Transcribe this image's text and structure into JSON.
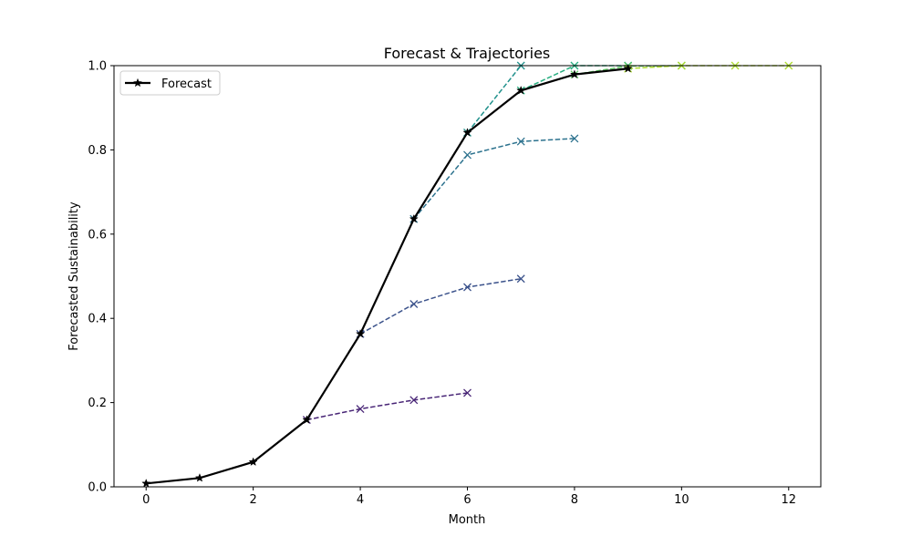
{
  "chart_data": {
    "type": "line",
    "title": "Forecast & Trajectories",
    "xlabel": "Month",
    "ylabel": "Forecasted Sustainability",
    "xlim": [
      -0.6,
      12.6
    ],
    "ylim": [
      0,
      1.0
    ],
    "xticks": [
      "0",
      "2",
      "4",
      "6",
      "8",
      "10",
      "12"
    ],
    "yticks": [
      "0.0",
      "0.2",
      "0.4",
      "0.6",
      "0.8",
      "1.0"
    ],
    "grid": false,
    "legend": {
      "position": "top-left",
      "entries": [
        "Forecast"
      ]
    },
    "forecast": {
      "name": "Forecast",
      "color": "#000000",
      "marker": "star",
      "x": [
        0,
        1,
        2,
        3,
        4,
        5,
        6,
        7,
        8,
        9
      ],
      "y": [
        0.008,
        0.021,
        0.059,
        0.159,
        0.363,
        0.636,
        0.841,
        0.941,
        0.979,
        0.993
      ]
    },
    "trajectories": [
      {
        "color": "#482576",
        "x": [
          3,
          4,
          5,
          6
        ],
        "y": [
          0.159,
          0.185,
          0.206,
          0.223
        ]
      },
      {
        "color": "#3b528b",
        "x": [
          4,
          5,
          6,
          7
        ],
        "y": [
          0.363,
          0.434,
          0.474,
          0.494
        ]
      },
      {
        "color": "#2c728e",
        "x": [
          5,
          6,
          7,
          8
        ],
        "y": [
          0.636,
          0.788,
          0.82,
          0.827
        ]
      },
      {
        "color": "#21918c",
        "x": [
          6,
          7
        ],
        "y": [
          0.841,
          1.0
        ]
      },
      {
        "color": "#28ae80",
        "x": [
          7,
          8,
          9
        ],
        "y": [
          0.941,
          1.0,
          1.0
        ]
      },
      {
        "color": "#5ec962",
        "x": [
          8,
          9,
          10
        ],
        "y": [
          0.979,
          0.999,
          1.0
        ]
      },
      {
        "color": "#addc30",
        "x": [
          9,
          10,
          11,
          12
        ],
        "y": [
          0.993,
          1.0,
          1.0,
          1.0
        ]
      }
    ]
  }
}
